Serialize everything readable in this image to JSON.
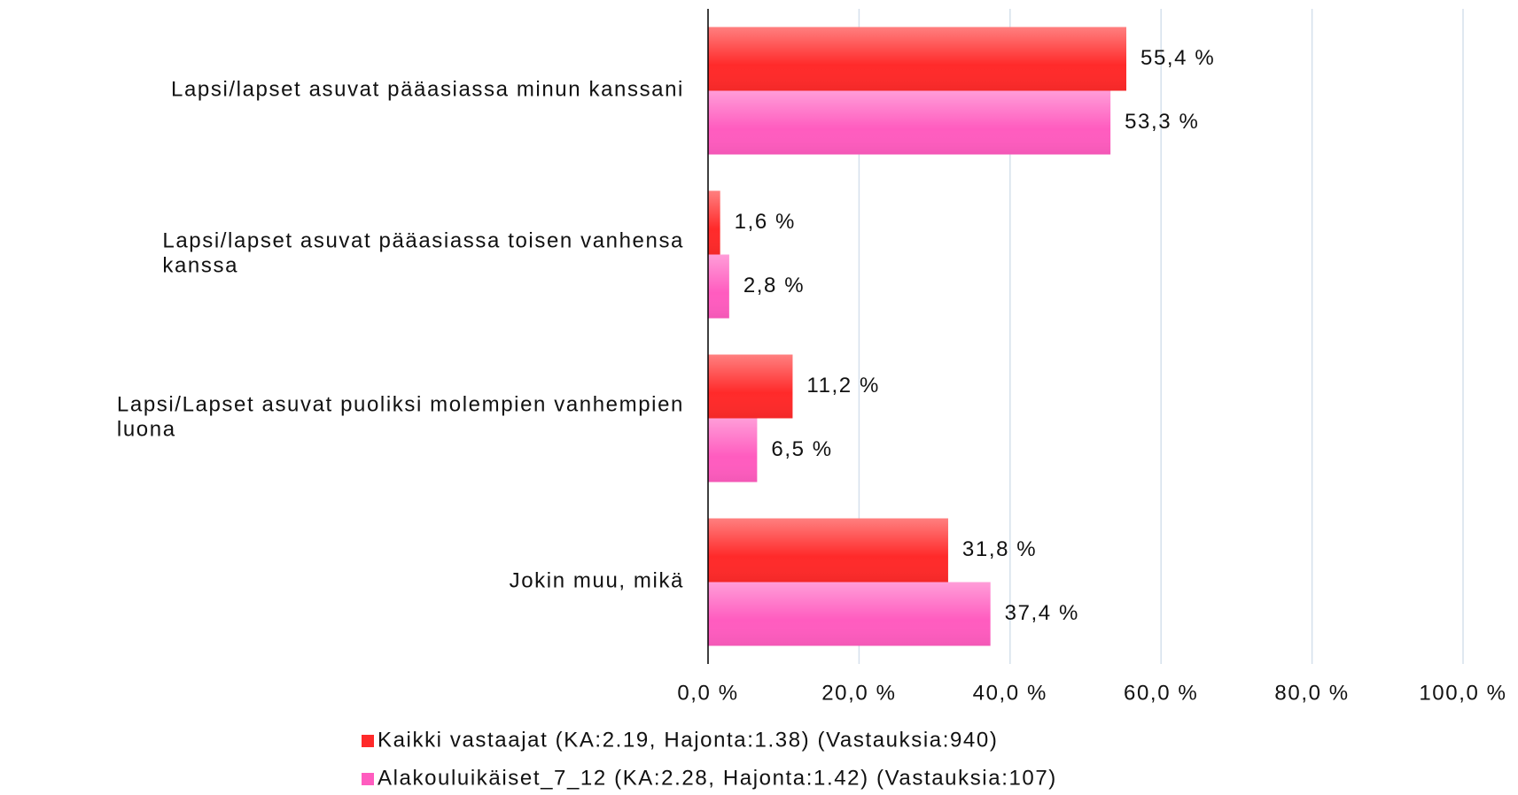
{
  "chart_data": {
    "type": "barh",
    "categories": [
      "Lapsi/lapset asuvat pääasiassa minun kanssani",
      "Lapsi/lapset asuvat pääasiassa toisen vanhensa kanssa",
      "Lapsi/Lapset asuvat puoliksi molempien vanhempien luona",
      "Jokin muu, mikä"
    ],
    "series": [
      {
        "name": "Kaikki vastaajat (KA:2.19, Hajonta:1.38) (Vastauksia:940)",
        "color": "#ff2a2a",
        "values": [
          55.4,
          1.6,
          11.2,
          31.8
        ],
        "value_labels": [
          "55,4 %",
          "1,6 %",
          "11,2 %",
          "31,8 %"
        ]
      },
      {
        "name": "Alakouluikäiset_7_12 (KA:2.28, Hajonta:1.42) (Vastauksia:107)",
        "color": "#ff5cbf",
        "values": [
          53.3,
          2.8,
          6.5,
          37.4
        ],
        "value_labels": [
          "53,3 %",
          "2,8 %",
          "6,5 %",
          "37,4 %"
        ]
      }
    ],
    "xlim": [
      0,
      100
    ],
    "xticks": [
      {
        "value": 0,
        "label": "0,0 %"
      },
      {
        "value": 20,
        "label": "20,0 %"
      },
      {
        "value": 40,
        "label": "40,0 %"
      },
      {
        "value": 60,
        "label": "60,0 %"
      },
      {
        "value": 80,
        "label": "80,0 %"
      },
      {
        "value": 100,
        "label": "100,0 %"
      }
    ],
    "grid": true,
    "legend": "bottom"
  }
}
